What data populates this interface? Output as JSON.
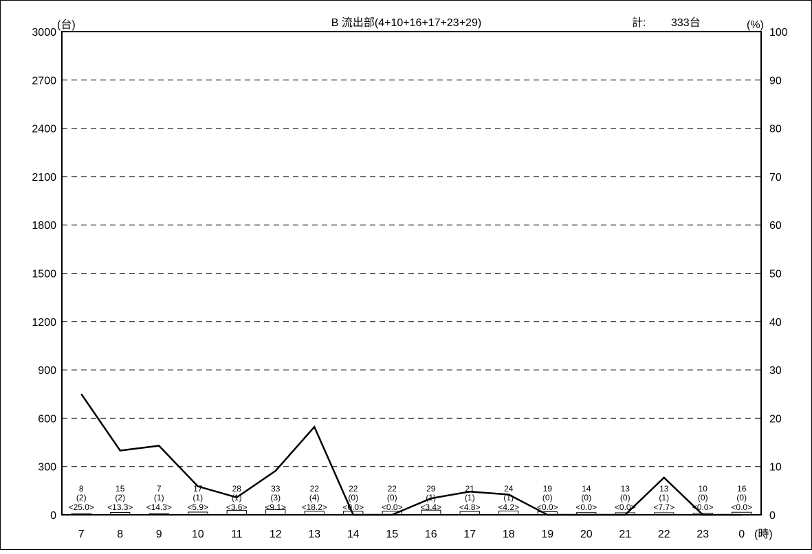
{
  "chart_data": {
    "type": "bar",
    "title": "B 流出部(4+10+16+17+23+29)",
    "total_label": "計:",
    "total_value": "333台",
    "y_left_unit": "(台)",
    "y_right_unit": "(%)",
    "x_unit": "(時)",
    "ylim_left": [
      0,
      3000
    ],
    "ylim_right": [
      0,
      100
    ],
    "y_left_ticks": [
      "0",
      "300",
      "600",
      "900",
      "1200",
      "1500",
      "1800",
      "2100",
      "2400",
      "2700",
      "3000"
    ],
    "y_right_ticks": [
      "0",
      "10",
      "20",
      "30",
      "40",
      "50",
      "60",
      "70",
      "80",
      "90",
      "100"
    ],
    "grid": "dashed horizontal",
    "categories": [
      "7",
      "8",
      "9",
      "10",
      "11",
      "12",
      "13",
      "14",
      "15",
      "16",
      "17",
      "18",
      "19",
      "20",
      "21",
      "22",
      "23",
      "0"
    ],
    "series": [
      {
        "values": [
          8,
          15,
          7,
          17,
          28,
          33,
          22,
          22,
          22,
          29,
          21,
          24,
          19,
          14,
          13,
          13,
          10,
          16
        ]
      },
      {
        "values": [
          25.0,
          13.3,
          14.3,
          5.9,
          3.6,
          9.1,
          18.2,
          0.0,
          0.0,
          3.4,
          4.8,
          4.2,
          0.0,
          0.0,
          0.0,
          7.7,
          0.0,
          0.0
        ]
      }
    ],
    "bar_labels": [
      "8",
      "15",
      "7",
      "17",
      "28",
      "33",
      "22",
      "22",
      "22",
      "29",
      "21",
      "24",
      "19",
      "14",
      "13",
      "13",
      "10",
      "16"
    ],
    "paren_labels": [
      "(2)",
      "(2)",
      "(1)",
      "(1)",
      "(1)",
      "(3)",
      "(4)",
      "(0)",
      "(0)",
      "(1)",
      "(1)",
      "(1)",
      "(0)",
      "(0)",
      "(0)",
      "(1)",
      "(0)",
      "(0)"
    ],
    "pct_labels": [
      "<25.0>",
      "<13.3>",
      "<14.3>",
      "<5.9>",
      "<3.6>",
      "<9.1>",
      "<18.2>",
      "<0.0>",
      "<0.0>",
      "<3.4>",
      "<4.8>",
      "<4.2>",
      "<0.0>",
      "<0.0>",
      "<0.0>",
      "<7.7>",
      "<0.0>",
      "<0.0>"
    ]
  }
}
